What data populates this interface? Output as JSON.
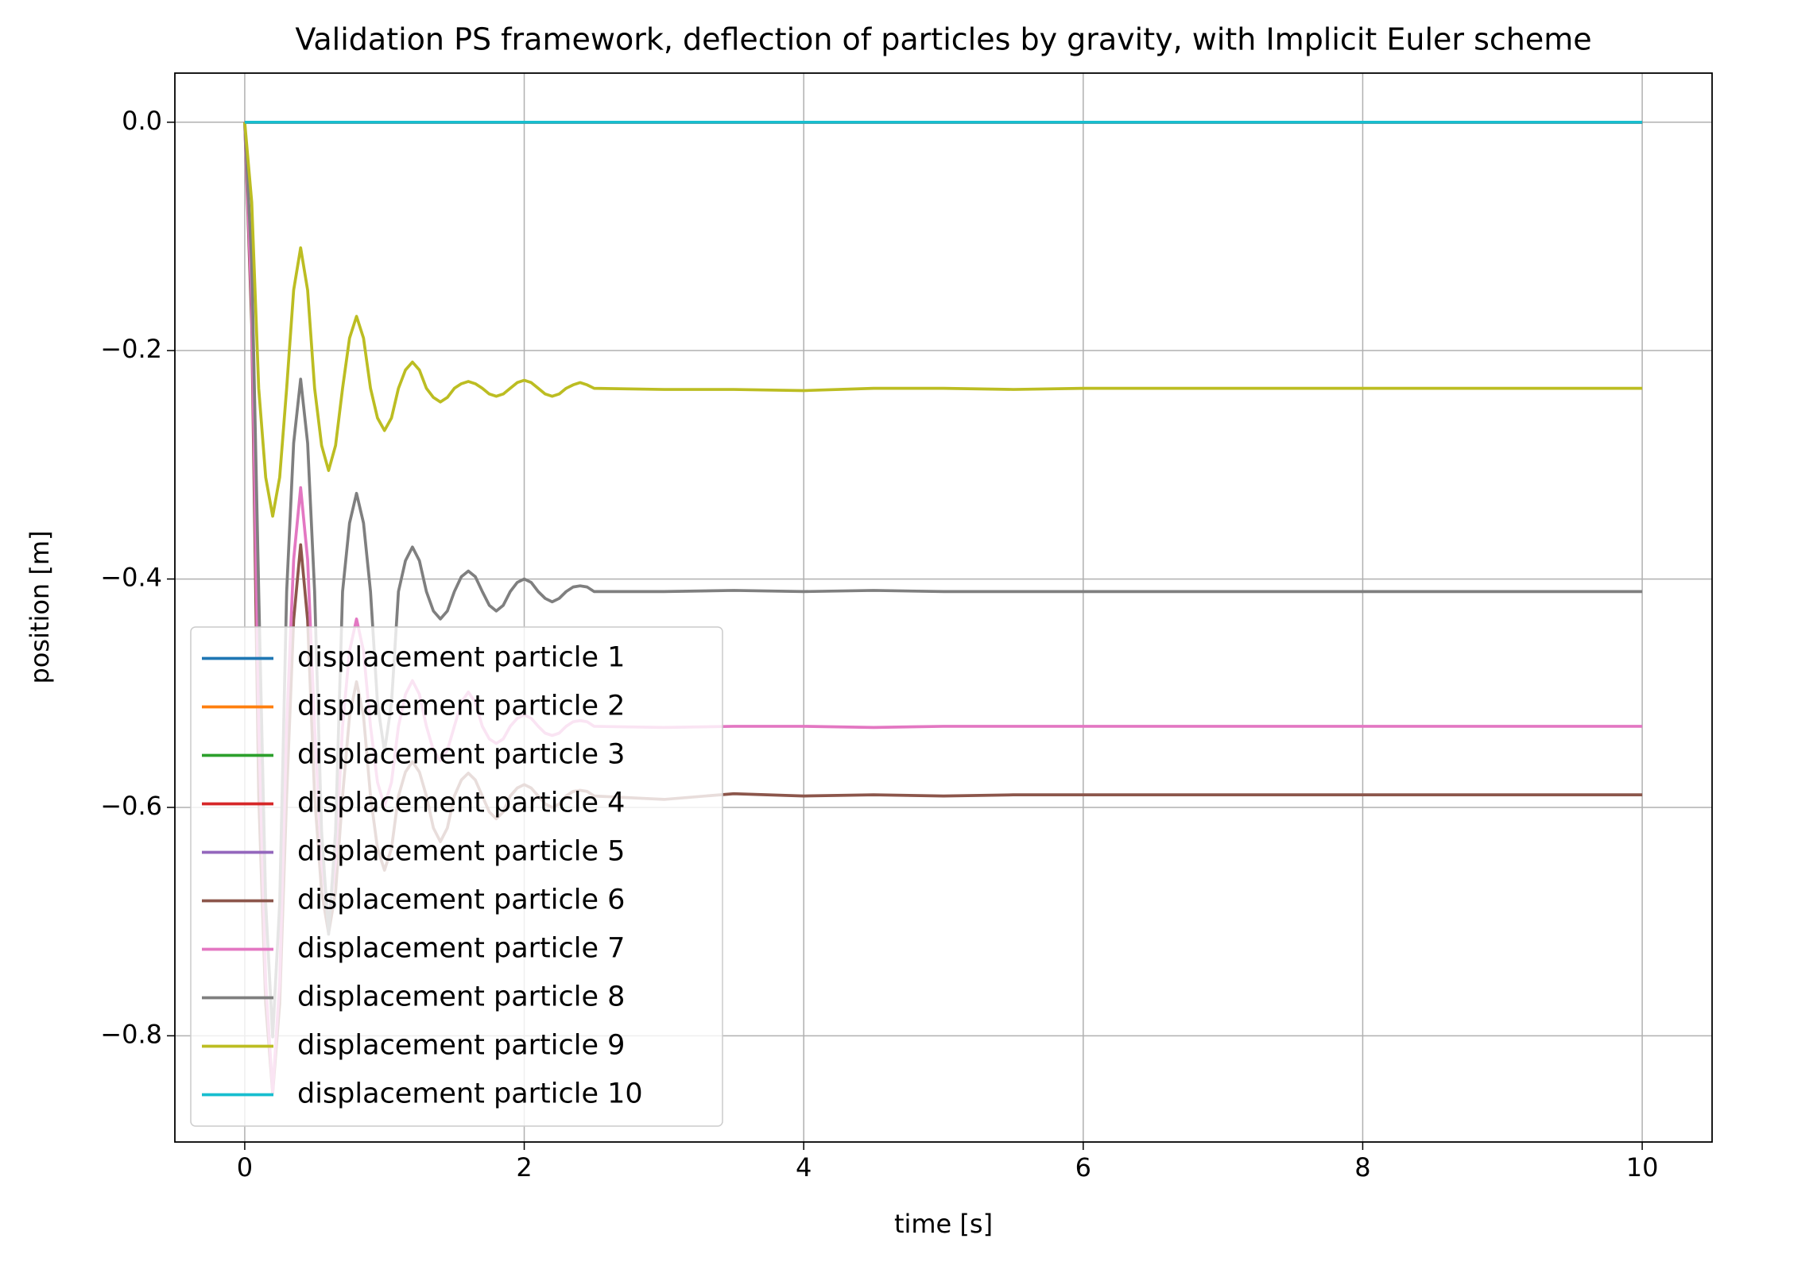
{
  "chart_data": {
    "type": "line",
    "title": "Validation PS framework, deflection of particles by gravity, with Implicit Euler scheme",
    "x_label": "time [s]",
    "y_label": "position [m]",
    "xlim": [
      -0.5,
      10.5
    ],
    "ylim": [
      -0.893,
      0.043
    ],
    "xticks": [
      0,
      2,
      4,
      6,
      8,
      10
    ],
    "yticks": [
      {
        "value": 0,
        "label": "0.0"
      },
      {
        "value": -0.2,
        "label": "−0.2"
      },
      {
        "value": -0.4,
        "label": "−0.4"
      },
      {
        "value": -0.6,
        "label": "−0.6"
      },
      {
        "value": -0.8,
        "label": "−0.8"
      }
    ],
    "grid": true,
    "legend": "lower left",
    "x": [
      0,
      0.05,
      0.1,
      0.15,
      0.2,
      0.25,
      0.3,
      0.35,
      0.4,
      0.45,
      0.5,
      0.55,
      0.6,
      0.65,
      0.7,
      0.75,
      0.8,
      0.85,
      0.9,
      0.95,
      1,
      1.05,
      1.1,
      1.15,
      1.2,
      1.25,
      1.3,
      1.35,
      1.4,
      1.45,
      1.5,
      1.55,
      1.6,
      1.65,
      1.7,
      1.75,
      1.8,
      1.85,
      1.9,
      1.95,
      2,
      2.05,
      2.1,
      2.15,
      2.2,
      2.25,
      2.3,
      2.35,
      2.4,
      2.45,
      2.5,
      3,
      3.5,
      4,
      4.5,
      5,
      5.5,
      6,
      6.5,
      7,
      7.5,
      8,
      8.5,
      9,
      9.5,
      10
    ],
    "series": [
      {
        "name": "displacement particle 1",
        "color": "#1f77b4",
        "values": [
          0,
          0,
          0,
          0,
          0,
          0,
          0,
          0,
          0,
          0,
          0,
          0,
          0,
          0,
          0,
          0,
          0,
          0,
          0,
          0,
          0,
          0,
          0,
          0,
          0,
          0,
          0,
          0,
          0,
          0,
          0,
          0,
          0,
          0,
          0,
          0,
          0,
          0,
          0,
          0,
          0,
          0,
          0,
          0,
          0,
          0,
          0,
          0,
          0,
          0,
          0,
          0,
          0,
          0,
          0,
          0,
          0,
          0,
          0,
          0,
          0,
          0,
          0,
          0,
          0,
          0
        ]
      },
      {
        "name": "displacement particle 2",
        "color": "#ff7f0e",
        "values": [
          0,
          0,
          0,
          0,
          0,
          0,
          0,
          0,
          0,
          0,
          0,
          0,
          0,
          0,
          0,
          0,
          0,
          0,
          0,
          0,
          0,
          0,
          0,
          0,
          0,
          0,
          0,
          0,
          0,
          0,
          0,
          0,
          0,
          0,
          0,
          0,
          0,
          0,
          0,
          0,
          0,
          0,
          0,
          0,
          0,
          0,
          0,
          0,
          0,
          0,
          0,
          0,
          0,
          0,
          0,
          0,
          0,
          0,
          0,
          0,
          0,
          0,
          0,
          0,
          0,
          0
        ]
      },
      {
        "name": "displacement particle 3",
        "color": "#2ca02c",
        "values": [
          0,
          0,
          0,
          0,
          0,
          0,
          0,
          0,
          0,
          0,
          0,
          0,
          0,
          0,
          0,
          0,
          0,
          0,
          0,
          0,
          0,
          0,
          0,
          0,
          0,
          0,
          0,
          0,
          0,
          0,
          0,
          0,
          0,
          0,
          0,
          0,
          0,
          0,
          0,
          0,
          0,
          0,
          0,
          0,
          0,
          0,
          0,
          0,
          0,
          0,
          0,
          0,
          0,
          0,
          0,
          0,
          0,
          0,
          0,
          0,
          0,
          0,
          0,
          0,
          0,
          0
        ]
      },
      {
        "name": "displacement particle 4",
        "color": "#d62728",
        "values": [
          0,
          0,
          0,
          0,
          0,
          0,
          0,
          0,
          0,
          0,
          0,
          0,
          0,
          0,
          0,
          0,
          0,
          0,
          0,
          0,
          0,
          0,
          0,
          0,
          0,
          0,
          0,
          0,
          0,
          0,
          0,
          0,
          0,
          0,
          0,
          0,
          0,
          0,
          0,
          0,
          0,
          0,
          0,
          0,
          0,
          0,
          0,
          0,
          0,
          0,
          0,
          0,
          0,
          0,
          0,
          0,
          0,
          0,
          0,
          0,
          0,
          0,
          0,
          0,
          0,
          0
        ]
      },
      {
        "name": "displacement particle 5",
        "color": "#9467bd",
        "values": [
          0,
          0,
          0,
          0,
          0,
          0,
          0,
          0,
          0,
          0,
          0,
          0,
          0,
          0,
          0,
          0,
          0,
          0,
          0,
          0,
          0,
          0,
          0,
          0,
          0,
          0,
          0,
          0,
          0,
          0,
          0,
          0,
          0,
          0,
          0,
          0,
          0,
          0,
          0,
          0,
          0,
          0,
          0,
          0,
          0,
          0,
          0,
          0,
          0,
          0,
          0,
          0,
          0,
          0,
          0,
          0,
          0,
          0,
          0,
          0,
          0,
          0,
          0,
          0,
          0,
          0
        ]
      },
      {
        "name": "displacement particle 6",
        "color": "#8c564b",
        "values": [
          0,
          -0.177,
          -0.59,
          -0.772,
          -0.85,
          -0.772,
          -0.59,
          -0.436,
          -0.37,
          -0.436,
          -0.59,
          -0.674,
          -0.71,
          -0.674,
          -0.59,
          -0.52,
          -0.49,
          -0.52,
          -0.59,
          -0.636,
          -0.655,
          -0.636,
          -0.59,
          -0.569,
          -0.56,
          -0.569,
          -0.59,
          -0.618,
          -0.63,
          -0.618,
          -0.59,
          -0.576,
          -0.57,
          -0.576,
          -0.59,
          -0.604,
          -0.61,
          -0.604,
          -0.59,
          -0.583,
          -0.58,
          -0.583,
          -0.59,
          -0.597,
          -0.6,
          -0.597,
          -0.59,
          -0.586,
          -0.585,
          -0.586,
          -0.59,
          -0.593,
          -0.588,
          -0.59,
          -0.589,
          -0.59,
          -0.589,
          -0.589,
          -0.589,
          -0.589,
          -0.589,
          -0.589,
          -0.589,
          -0.589,
          -0.589,
          -0.589
        ]
      },
      {
        "name": "displacement particle 7",
        "color": "#e377c2",
        "values": [
          0,
          -0.159,
          -0.529,
          -0.753,
          -0.849,
          -0.753,
          -0.529,
          -0.383,
          -0.32,
          -0.383,
          -0.529,
          -0.648,
          -0.699,
          -0.648,
          -0.529,
          -0.463,
          -0.435,
          -0.463,
          -0.529,
          -0.578,
          -0.599,
          -0.578,
          -0.529,
          -0.501,
          -0.489,
          -0.501,
          -0.529,
          -0.55,
          -0.559,
          -0.55,
          -0.529,
          -0.508,
          -0.499,
          -0.508,
          -0.529,
          -0.54,
          -0.544,
          -0.54,
          -0.529,
          -0.522,
          -0.519,
          -0.522,
          -0.529,
          -0.535,
          -0.537,
          -0.535,
          -0.529,
          -0.525,
          -0.524,
          -0.525,
          -0.529,
          -0.53,
          -0.529,
          -0.529,
          -0.53,
          -0.529,
          -0.529,
          -0.529,
          -0.529,
          -0.529,
          -0.529,
          -0.529,
          -0.529,
          -0.529,
          -0.529,
          -0.529
        ]
      },
      {
        "name": "displacement particle 8",
        "color": "#7f7f7f",
        "values": [
          0,
          -0.123,
          -0.411,
          -0.684,
          -0.801,
          -0.684,
          -0.411,
          -0.281,
          -0.225,
          -0.281,
          -0.411,
          -0.621,
          -0.711,
          -0.621,
          -0.411,
          -0.351,
          -0.325,
          -0.351,
          -0.411,
          -0.509,
          -0.551,
          -0.509,
          -0.411,
          -0.384,
          -0.372,
          -0.384,
          -0.411,
          -0.428,
          -0.435,
          -0.428,
          -0.411,
          -0.398,
          -0.393,
          -0.398,
          -0.411,
          -0.423,
          -0.428,
          -0.423,
          -0.411,
          -0.403,
          -0.4,
          -0.403,
          -0.411,
          -0.417,
          -0.42,
          -0.417,
          -0.411,
          -0.407,
          -0.406,
          -0.407,
          -0.411,
          -0.411,
          -0.41,
          -0.411,
          -0.41,
          -0.411,
          -0.411,
          -0.411,
          -0.411,
          -0.411,
          -0.411,
          -0.411,
          -0.411,
          -0.411,
          -0.411,
          -0.411
        ]
      },
      {
        "name": "displacement particle 9",
        "color": "#bcbd22",
        "values": [
          0,
          -0.07,
          -0.233,
          -0.311,
          -0.345,
          -0.311,
          -0.233,
          -0.147,
          -0.11,
          -0.147,
          -0.233,
          -0.283,
          -0.305,
          -0.283,
          -0.233,
          -0.189,
          -0.17,
          -0.189,
          -0.233,
          -0.259,
          -0.27,
          -0.259,
          -0.233,
          -0.217,
          -0.21,
          -0.217,
          -0.233,
          -0.241,
          -0.245,
          -0.241,
          -0.233,
          -0.229,
          -0.227,
          -0.229,
          -0.233,
          -0.238,
          -0.24,
          -0.238,
          -0.233,
          -0.228,
          -0.226,
          -0.228,
          -0.233,
          -0.238,
          -0.24,
          -0.238,
          -0.233,
          -0.23,
          -0.228,
          -0.23,
          -0.233,
          -0.234,
          -0.234,
          -0.235,
          -0.233,
          -0.233,
          -0.234,
          -0.233,
          -0.233,
          -0.233,
          -0.233,
          -0.233,
          -0.233,
          -0.233,
          -0.233,
          -0.233
        ]
      },
      {
        "name": "displacement particle 10",
        "color": "#17becf",
        "values": [
          0,
          0,
          0,
          0,
          0,
          0,
          0,
          0,
          0,
          0,
          0,
          0,
          0,
          0,
          0,
          0,
          0,
          0,
          0,
          0,
          0,
          0,
          0,
          0,
          0,
          0,
          0,
          0,
          0,
          0,
          0,
          0,
          0,
          0,
          0,
          0,
          0,
          0,
          0,
          0,
          0,
          0,
          0,
          0,
          0,
          0,
          0,
          0,
          0,
          0,
          0,
          0,
          0,
          0,
          0,
          0,
          0,
          0,
          0,
          0,
          0,
          0,
          0,
          0,
          0,
          0
        ]
      }
    ]
  }
}
